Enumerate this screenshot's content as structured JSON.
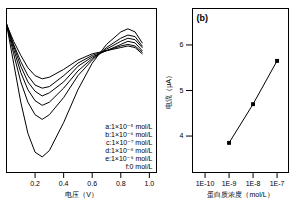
{
  "chart_data": [
    {
      "type": "line",
      "x_label": "电压（V）",
      "x": [
        0.0,
        0.05,
        0.1,
        0.15,
        0.2,
        0.25,
        0.3,
        0.4,
        0.5,
        0.6,
        0.7,
        0.8,
        0.85,
        0.9,
        0.95
      ],
      "series": [
        {
          "name": "a:1×10⁻⁵ mol/L",
          "color": "#000000",
          "values": [
            9.5,
            7.0,
            4.5,
            2.5,
            1.3,
            1.0,
            1.4,
            3.2,
            5.3,
            7.0,
            8.2,
            9.0,
            9.2,
            9.0,
            8.3
          ]
        },
        {
          "name": "b:1×10⁻⁶ mol/L",
          "color": "#000000",
          "values": [
            9.5,
            7.6,
            5.8,
            4.5,
            3.7,
            3.4,
            3.7,
            4.8,
            6.2,
            7.2,
            8.0,
            8.6,
            8.8,
            8.7,
            8.1
          ]
        },
        {
          "name": "c:1×10⁻⁷ mol/L",
          "color": "#000000",
          "values": [
            9.5,
            7.9,
            6.4,
            5.3,
            4.6,
            4.3,
            4.5,
            5.4,
            6.5,
            7.3,
            7.9,
            8.4,
            8.6,
            8.5,
            8.0
          ]
        },
        {
          "name": "d:1×10⁻⁸ mol/L",
          "color": "#000000",
          "values": [
            9.5,
            8.1,
            6.8,
            5.8,
            5.2,
            4.9,
            5.1,
            5.8,
            6.8,
            7.4,
            7.8,
            8.2,
            8.4,
            8.3,
            7.8
          ]
        },
        {
          "name": "e:1×10⁻⁹ mol/L",
          "color": "#000000",
          "values": [
            9.5,
            8.2,
            7.1,
            6.2,
            5.6,
            5.4,
            5.5,
            6.2,
            7.0,
            7.5,
            7.8,
            8.1,
            8.2,
            8.1,
            7.7
          ]
        },
        {
          "name": "f:0 mol/L",
          "color": "#000000",
          "values": [
            9.5,
            8.4,
            7.5,
            6.7,
            6.2,
            6.0,
            6.1,
            6.6,
            7.2,
            7.6,
            7.8,
            8.0,
            8.1,
            8.0,
            7.6
          ]
        }
      ],
      "xlim": [
        0,
        1.05
      ],
      "xticks": [
        0.2,
        0.4,
        0.6,
        0.8,
        {
          "value": 1,
          "label": "1.0"
        }
      ],
      "ylim": [
        0,
        10.5
      ],
      "tick_labels": "x",
      "legend": "bottom-right",
      "grid": false
    },
    {
      "type": "line",
      "title": "(b)",
      "x_label": "蛋白质浓度（mol/L）",
      "y_label": "电流（μA）",
      "x": [
        1e-09,
        1e-08,
        1e-07
      ],
      "values": [
        3.85,
        4.7,
        5.65
      ],
      "color": "#000000",
      "marker": "square",
      "log": "x",
      "xlim": [
        3e-11,
        3e-07
      ],
      "xticks": [
        {
          "value": 1e-10,
          "label": "1E-10"
        },
        {
          "value": 1e-09,
          "label": "1E-9"
        },
        {
          "value": 1e-08,
          "label": "1E-8"
        },
        {
          "value": 1e-07,
          "label": "1E-7"
        }
      ],
      "ylim": [
        3.2,
        6.8
      ],
      "yticks": [
        4,
        5,
        6
      ],
      "grid": false
    }
  ]
}
